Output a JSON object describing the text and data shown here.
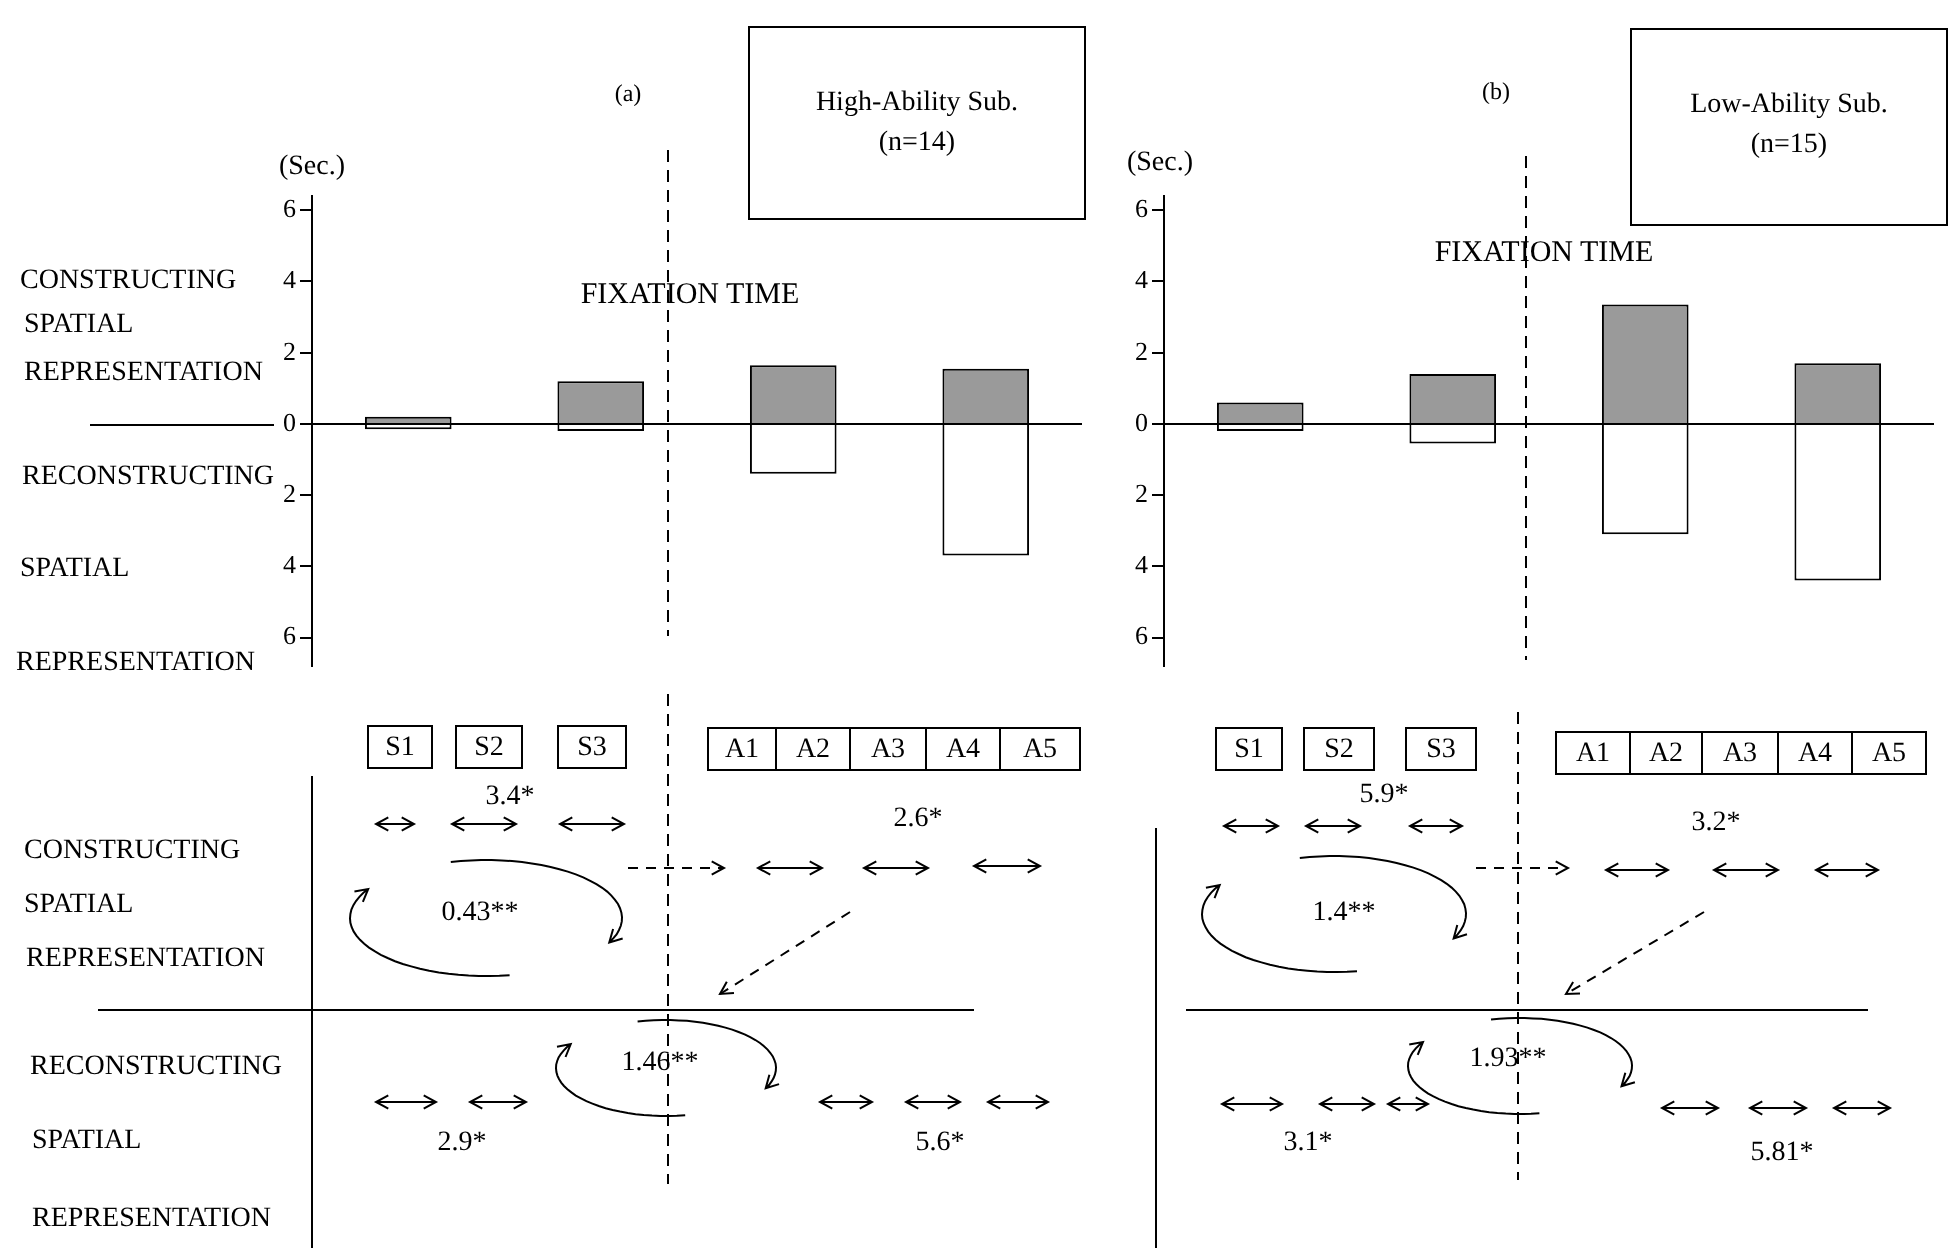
{
  "chart_data": [
    {
      "type": "bar",
      "title": "(a)",
      "subtitle": "High-Ability Sub.\n(n=14)",
      "ylabel": "(Sec.)",
      "annotations": [
        "FIXATION TIME",
        "CONSTRUCTING",
        "SPATIAL",
        "REPRESENTATION",
        "RECONSTRUCTING",
        "SPATIAL",
        "REPRESENTATION"
      ],
      "categories": [
        null,
        null,
        null,
        null
      ],
      "stacked": true,
      "series": [
        {
          "color": "#9a9a9a",
          "values": [
            0.2,
            1.2,
            1.65,
            1.55
          ]
        },
        {
          "color": "#ffffff",
          "values": [
            -0.15,
            -0.2,
            -1.4,
            -3.7
          ]
        }
      ],
      "ylim": [
        -6.8,
        6.4
      ],
      "yticks": [
        {
          "value": -6,
          "label": "6"
        },
        {
          "value": -4,
          "label": "4"
        },
        {
          "value": -2,
          "label": "2"
        },
        0,
        2,
        4,
        6
      ]
    },
    {
      "type": "bar",
      "title": "(b)",
      "subtitle": "Low-Ability Sub.\n(n=15)",
      "ylabel": "(Sec.)",
      "annotations": [
        "FIXATION TIME"
      ],
      "categories": [
        null,
        null,
        null,
        null
      ],
      "stacked": true,
      "series": [
        {
          "color": "#9a9a9a",
          "values": [
            0.6,
            1.4,
            3.35,
            1.7
          ]
        },
        {
          "color": "#ffffff",
          "values": [
            -0.2,
            -0.55,
            -3.1,
            -4.4
          ]
        }
      ],
      "ylim": [
        -6.8,
        6.4
      ],
      "yticks": [
        {
          "value": -6,
          "label": "6"
        },
        {
          "value": -4,
          "label": "4"
        },
        {
          "value": -2,
          "label": "2"
        },
        0,
        2,
        4,
        6
      ]
    },
    {
      "type": "other",
      "annotations": [
        "CONSTRUCTING",
        "SPATIAL",
        "REPRESENTATION",
        "RECONSTRUCTING",
        "SPATIAL",
        "REPRESENTATION",
        "S1",
        "S2",
        "S3",
        "A1",
        "A2",
        "A3",
        "A4",
        "A5",
        "3.4*",
        "2.6*",
        "0.43**",
        "1.46**",
        "2.9*",
        "5.6*"
      ]
    },
    {
      "type": "other",
      "annotations": [
        "S1",
        "S2",
        "S3",
        "A1",
        "A2",
        "A3",
        "A4",
        "A5",
        "5.9*",
        "3.2*",
        "1.4**",
        "1.93**",
        "3.1*",
        "5.81*"
      ]
    }
  ]
}
